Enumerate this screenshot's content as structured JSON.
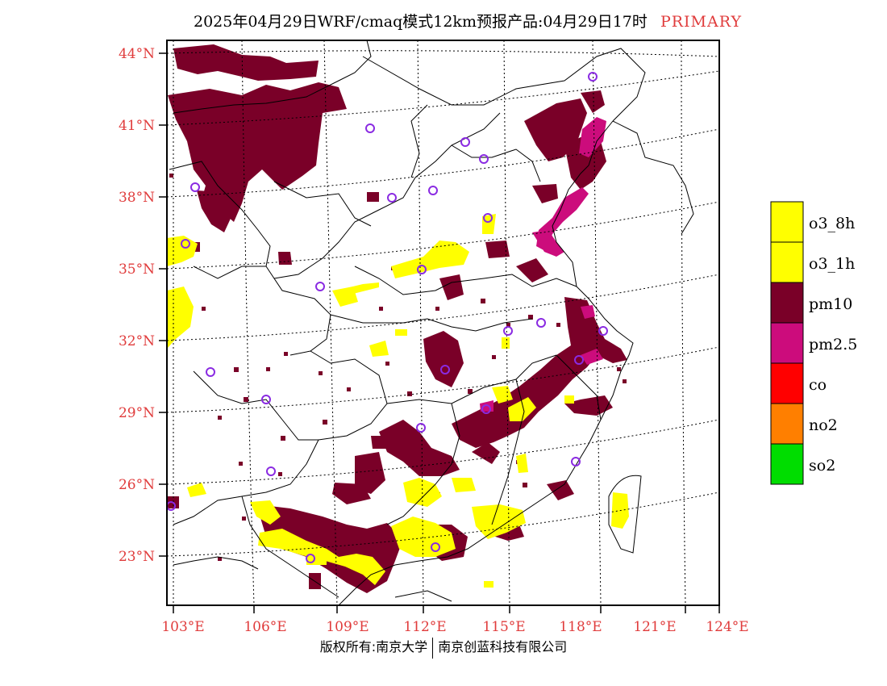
{
  "title": "2025年04月29日WRF/cmaq模式12km预报产品:04月29日17时",
  "product_tag": "PRIMARY",
  "latitude_labels": [
    "44°N",
    "41°N",
    "38°N",
    "35°N",
    "32°N",
    "29°N",
    "26°N",
    "23°N"
  ],
  "longitude_labels": [
    "103°E",
    "106°E",
    "109°E",
    "112°E",
    "115°E",
    "118°E",
    "121°E",
    "124°E"
  ],
  "legend": [
    {
      "label": "o3_8h",
      "color": "#ffff00"
    },
    {
      "label": "o3_1h",
      "color": "#ffff00"
    },
    {
      "label": "pm10",
      "color": "#7a0028"
    },
    {
      "label": "pm2.5",
      "color": "#cc0c7c"
    },
    {
      "label": "co",
      "color": "#ff0000"
    },
    {
      "label": "no2",
      "color": "#ff7f00"
    },
    {
      "label": "so2",
      "color": "#00dd00"
    }
  ],
  "footer": {
    "left": "版权所有:南京大学",
    "right": "南京创蓝科技有限公司"
  },
  "colors": {
    "axis_label": "#e03c3c",
    "pm10": "#7a0028",
    "pm25": "#cc0c7c",
    "o3": "#ffff00",
    "station": "#8a2be2"
  }
}
